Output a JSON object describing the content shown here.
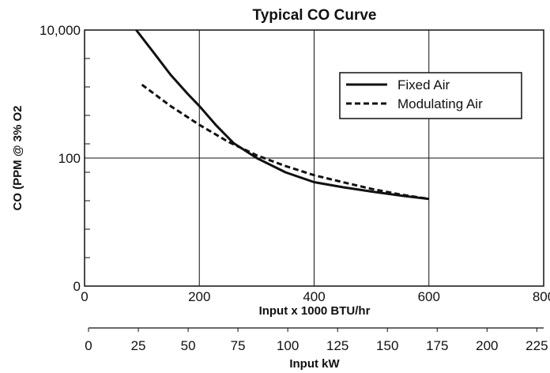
{
  "chart_data": {
    "type": "line",
    "title": "Typical CO Curve",
    "xlabel": "Input x 1000 BTU/hr",
    "ylabel": "CO (PPM @ 3% O2",
    "xlim": [
      0,
      800
    ],
    "ylim": [
      0,
      10000
    ],
    "yscale": "log-like, ticks 0 / 100 / 10,000",
    "x_ticks": [
      "0",
      "200",
      "400",
      "600",
      "800"
    ],
    "y_ticks": [
      "0",
      "100",
      "10,000"
    ],
    "secondary_axis": {
      "label": "Input kW",
      "ticks": [
        "0",
        "25",
        "50",
        "75",
        "100",
        "125",
        "150",
        "175",
        "200",
        "225"
      ]
    },
    "grid": true,
    "legend_position": "top-right",
    "series": [
      {
        "name": "Fixed Air",
        "style": "solid",
        "x": [
          90,
          120,
          150,
          180,
          200,
          230,
          260,
          300,
          350,
          400,
          450,
          500,
          550,
          600
        ],
        "y": [
          10000,
          4500,
          2000,
          1000,
          650,
          320,
          170,
          100,
          60,
          42,
          35,
          30,
          26,
          23
        ]
      },
      {
        "name": "Modulating Air",
        "style": "dashed",
        "x": [
          100,
          150,
          200,
          250,
          300,
          350,
          400,
          450,
          500,
          550,
          600
        ],
        "y": [
          1400,
          650,
          330,
          180,
          110,
          75,
          54,
          42,
          33,
          27,
          23
        ]
      }
    ]
  }
}
